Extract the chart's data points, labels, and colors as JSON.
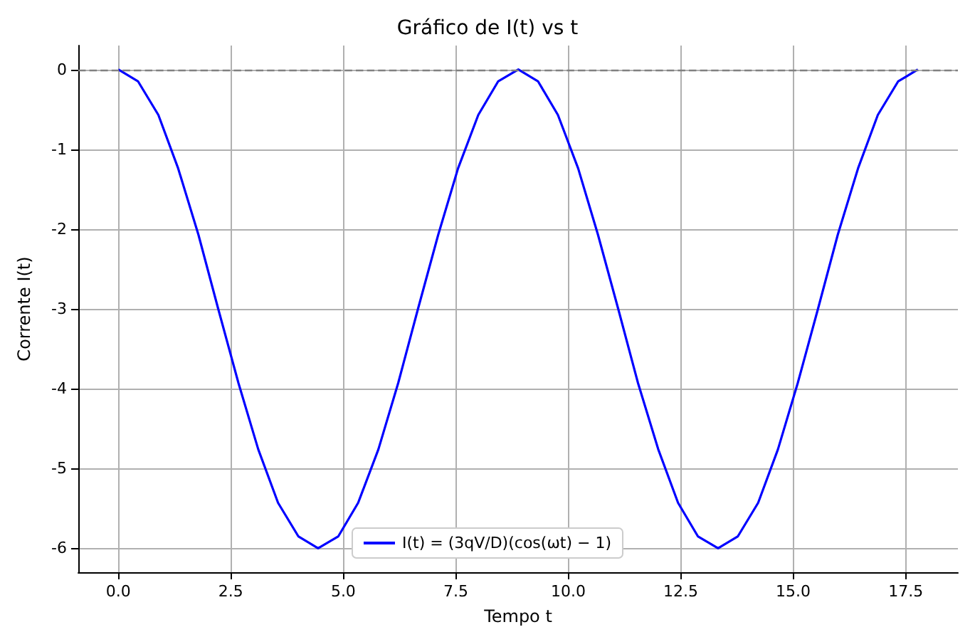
{
  "chart_data": {
    "type": "line",
    "title": "Gráfico de I(t) vs t",
    "xlabel": "Tempo t",
    "ylabel": "Corrente I(t)",
    "x": [
      0,
      0.44,
      0.89,
      1.33,
      1.78,
      2.22,
      2.67,
      3.11,
      3.55,
      4.0,
      4.44,
      4.89,
      5.33,
      5.78,
      6.22,
      6.66,
      7.11,
      7.55,
      8.0,
      8.44,
      8.89,
      9.33,
      9.77,
      10.22,
      10.66,
      11.11,
      11.55,
      12.0,
      12.44,
      12.88,
      13.33,
      13.77,
      14.22,
      14.66,
      15.1,
      15.55,
      15.99,
      16.44,
      16.88,
      17.33,
      17.77
    ],
    "series": [
      {
        "name": "I(t) = (3qV/D)(cos(ωt) − 1)",
        "color": "#0000ff",
        "values": [
          0,
          -0.15,
          -0.57,
          -1.24,
          -2.07,
          -3,
          -3.93,
          -4.76,
          -5.43,
          -5.85,
          -6,
          -5.85,
          -5.43,
          -4.76,
          -3.93,
          -3,
          -2.07,
          -1.24,
          -0.57,
          -0.15,
          0,
          -0.15,
          -0.57,
          -1.24,
          -2.07,
          -3,
          -3.93,
          -4.76,
          -5.43,
          -5.85,
          -6,
          -5.85,
          -5.43,
          -4.76,
          -3.93,
          -3,
          -2.07,
          -1.24,
          -0.57,
          -0.15,
          0
        ]
      }
    ],
    "xlim": [
      -0.89,
      18.66
    ],
    "ylim": [
      -6.3,
      0.3
    ],
    "xticks": [
      {
        "value": 0,
        "label": "0.0"
      },
      {
        "value": 2.5,
        "label": "2.5"
      },
      {
        "value": 5,
        "label": "5.0"
      },
      {
        "value": 7.5,
        "label": "7.5"
      },
      {
        "value": 10,
        "label": "10.0"
      },
      {
        "value": 12.5,
        "label": "12.5"
      },
      {
        "value": 15,
        "label": "15.0"
      },
      {
        "value": 17.5,
        "label": "17.5"
      }
    ],
    "yticks": [
      -6,
      -5,
      -4,
      -3,
      -2,
      -1,
      0
    ],
    "ref_lines": [
      {
        "axis": "y",
        "value": 0,
        "color": "#808080",
        "line_style": "dashed"
      }
    ],
    "grid": true,
    "legend": "bottom",
    "marker": "none",
    "line_style": "solid"
  }
}
